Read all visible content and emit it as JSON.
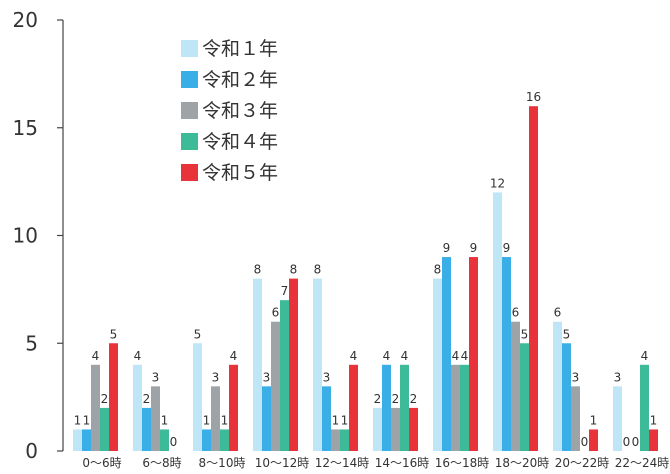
{
  "chart_data": {
    "type": "bar",
    "title": "",
    "xlabel": "",
    "ylabel": "",
    "ylim": [
      0,
      20
    ],
    "yticks": [
      "0",
      "5",
      "10",
      "15",
      "20"
    ],
    "grid": false,
    "legend_position": "top-left",
    "categories": [
      "0～6時",
      "6～8時",
      "8～10時",
      "10～12時",
      "12～14時",
      "14～16時",
      "16～18時",
      "18～20時",
      "20～22時",
      "22～24時"
    ],
    "series": [
      {
        "name": "令和１年",
        "color": "#bfe6f7",
        "values": [
          1,
          4,
          5,
          8,
          8,
          2,
          8,
          12,
          6,
          3
        ]
      },
      {
        "name": "令和２年",
        "color": "#3aaee6",
        "values": [
          1,
          2,
          1,
          3,
          3,
          4,
          9,
          9,
          5,
          0
        ]
      },
      {
        "name": "令和３年",
        "color": "#9ea3a8",
        "values": [
          4,
          3,
          3,
          6,
          1,
          2,
          4,
          6,
          3,
          0
        ]
      },
      {
        "name": "令和４年",
        "color": "#3dba97",
        "values": [
          2,
          1,
          1,
          7,
          1,
          4,
          4,
          5,
          0,
          4
        ]
      },
      {
        "name": "令和５年",
        "color": "#e8333b",
        "values": [
          5,
          0,
          4,
          8,
          4,
          2,
          9,
          16,
          1,
          1
        ]
      }
    ]
  }
}
